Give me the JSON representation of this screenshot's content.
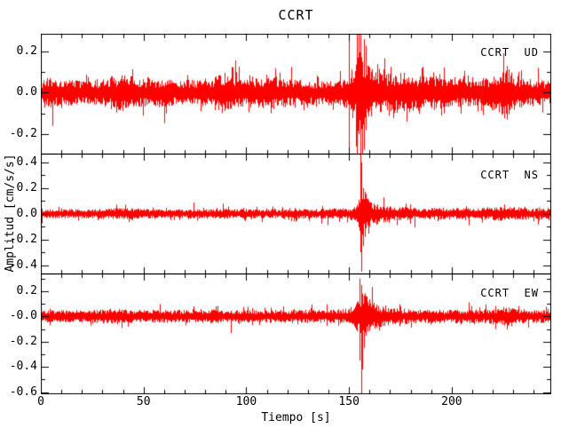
{
  "title": "CCRT",
  "axis": {
    "x_label": "Tiempo [s]",
    "y_label": "Amplitud [cm/s/s]",
    "xlim": [
      0,
      248
    ],
    "x_ticks": [
      {
        "v": 0,
        "label": "0"
      },
      {
        "v": 50,
        "label": "50"
      },
      {
        "v": 100,
        "label": "100"
      },
      {
        "v": 150,
        "label": "150"
      },
      {
        "v": 200,
        "label": "200"
      }
    ],
    "x_major_step": 50,
    "x_minor_step": 10,
    "y_minor_step": 0.1
  },
  "colors": {
    "trace": "#ff0000",
    "axis": "#000000",
    "background": "#ffffff"
  },
  "chart_data": [
    {
      "type": "line",
      "name": "CCRT  UD",
      "station": "CCRT",
      "component": "UD",
      "xlabel": "Tiempo [s]",
      "ylabel": "Amplitud [cm/s/s]",
      "xlim": [
        0,
        248
      ],
      "ylim": [
        -0.295,
        0.286
      ],
      "y_ticks": [
        {
          "v": 0.2,
          "label": "0.2"
        },
        {
          "v": 0.0,
          "label": "0.0"
        },
        {
          "v": -0.2,
          "label": "-0.2"
        }
      ],
      "noise_envelope": [
        [
          0,
          0.055
        ],
        [
          3,
          0.07
        ],
        [
          8,
          0.055
        ],
        [
          15,
          0.055
        ],
        [
          25,
          0.05
        ],
        [
          33,
          0.065
        ],
        [
          38,
          0.075
        ],
        [
          42,
          0.085
        ],
        [
          46,
          0.06
        ],
        [
          55,
          0.065
        ],
        [
          65,
          0.055
        ],
        [
          75,
          0.055
        ],
        [
          83,
          0.065
        ],
        [
          87,
          0.095
        ],
        [
          91,
          0.07
        ],
        [
          100,
          0.06
        ],
        [
          108,
          0.065
        ],
        [
          114,
          0.07
        ],
        [
          122,
          0.055
        ],
        [
          130,
          0.05
        ],
        [
          138,
          0.052
        ],
        [
          144,
          0.055
        ],
        [
          147,
          0.06
        ],
        [
          149,
          0.08
        ],
        [
          151,
          0.1
        ],
        [
          153,
          0.13
        ],
        [
          155,
          0.2
        ],
        [
          157,
          0.16
        ],
        [
          159,
          0.12
        ],
        [
          162,
          0.1
        ],
        [
          166,
          0.08
        ],
        [
          172,
          0.08
        ],
        [
          177,
          0.1
        ],
        [
          182,
          0.08
        ],
        [
          188,
          0.07
        ],
        [
          194,
          0.08
        ],
        [
          198,
          0.07
        ],
        [
          205,
          0.06
        ],
        [
          212,
          0.06
        ],
        [
          218,
          0.065
        ],
        [
          222,
          0.08
        ],
        [
          226,
          0.12
        ],
        [
          230,
          0.08
        ],
        [
          236,
          0.06
        ],
        [
          242,
          0.055
        ],
        [
          248,
          0.05
        ]
      ],
      "spikes": [
        {
          "t": 149.8,
          "lo": -0.295,
          "hi": 0.286
        },
        {
          "t": 154.0,
          "lo": -0.295,
          "hi": 0.286
        },
        {
          "t": 154.8,
          "lo": -0.2,
          "hi": 0.286
        },
        {
          "t": 155.6,
          "lo": -0.295,
          "hi": 0.286
        },
        {
          "t": 156.4,
          "lo": -0.295,
          "hi": 0.15
        },
        {
          "t": 157.2,
          "lo": -0.22,
          "hi": 0.26
        },
        {
          "t": 158.0,
          "lo": -0.18,
          "hi": 0.2
        },
        {
          "t": 196.0,
          "lo": -0.1,
          "hi": 0.12
        },
        {
          "t": 227.0,
          "lo": -0.13,
          "hi": 0.13
        }
      ],
      "seed": 7
    },
    {
      "type": "line",
      "name": "CCRT  NS",
      "station": "CCRT",
      "component": "NS",
      "xlabel": "Tiempo [s]",
      "ylabel": "Amplitud [cm/s/s]",
      "xlim": [
        0,
        248
      ],
      "ylim": [
        -0.465,
        0.468
      ],
      "y_ticks": [
        {
          "v": 0.4,
          "label": "0.4"
        },
        {
          "v": 0.2,
          "label": "0.2"
        },
        {
          "v": 0.0,
          "label": "0.0"
        },
        {
          "v": -0.2,
          "label": "-0.2"
        },
        {
          "v": -0.4,
          "label": "-0.4"
        }
      ],
      "noise_envelope": [
        [
          0,
          0.03
        ],
        [
          10,
          0.032
        ],
        [
          20,
          0.032
        ],
        [
          30,
          0.036
        ],
        [
          40,
          0.045
        ],
        [
          48,
          0.034
        ],
        [
          60,
          0.03
        ],
        [
          75,
          0.032
        ],
        [
          90,
          0.034
        ],
        [
          105,
          0.03
        ],
        [
          120,
          0.032
        ],
        [
          135,
          0.034
        ],
        [
          145,
          0.036
        ],
        [
          150,
          0.04
        ],
        [
          153,
          0.06
        ],
        [
          155,
          0.12
        ],
        [
          157,
          0.18
        ],
        [
          159,
          0.12
        ],
        [
          162,
          0.08
        ],
        [
          166,
          0.06
        ],
        [
          172,
          0.05
        ],
        [
          180,
          0.042
        ],
        [
          195,
          0.04
        ],
        [
          210,
          0.038
        ],
        [
          220,
          0.045
        ],
        [
          226,
          0.055
        ],
        [
          232,
          0.045
        ],
        [
          240,
          0.038
        ],
        [
          248,
          0.035
        ]
      ],
      "spikes": [
        {
          "t": 155.4,
          "lo": -0.3,
          "hi": 0.468
        },
        {
          "t": 156.0,
          "lo": -0.45,
          "hi": 0.4
        },
        {
          "t": 156.8,
          "lo": -0.25,
          "hi": 0.2
        },
        {
          "t": 157.6,
          "lo": -0.18,
          "hi": 0.15
        }
      ],
      "seed": 13
    },
    {
      "type": "line",
      "name": "CCRT  EW",
      "station": "CCRT",
      "component": "EW",
      "xlabel": "Tiempo [s]",
      "ylabel": "Amplitud [cm/s/s]",
      "xlim": [
        0,
        248
      ],
      "ylim": [
        -0.61,
        0.34
      ],
      "y_ticks": [
        {
          "v": 0.2,
          "label": "0.2"
        },
        {
          "v": 0.0,
          "label": "-0.0"
        },
        {
          "v": -0.2,
          "label": "-0.2"
        },
        {
          "v": -0.4,
          "label": "-0.4"
        },
        {
          "v": -0.6,
          "label": "-0.6"
        }
      ],
      "noise_envelope": [
        [
          0,
          0.042
        ],
        [
          10,
          0.044
        ],
        [
          20,
          0.042
        ],
        [
          30,
          0.05
        ],
        [
          36,
          0.058
        ],
        [
          42,
          0.048
        ],
        [
          55,
          0.044
        ],
        [
          70,
          0.045
        ],
        [
          85,
          0.048
        ],
        [
          100,
          0.044
        ],
        [
          115,
          0.046
        ],
        [
          130,
          0.048
        ],
        [
          140,
          0.046
        ],
        [
          148,
          0.055
        ],
        [
          151,
          0.07
        ],
        [
          153,
          0.08
        ],
        [
          155,
          0.15
        ],
        [
          157,
          0.2
        ],
        [
          159,
          0.13
        ],
        [
          162,
          0.09
        ],
        [
          167,
          0.07
        ],
        [
          173,
          0.055
        ],
        [
          182,
          0.05
        ],
        [
          195,
          0.046
        ],
        [
          205,
          0.048
        ],
        [
          215,
          0.05
        ],
        [
          222,
          0.06
        ],
        [
          227,
          0.07
        ],
        [
          232,
          0.055
        ],
        [
          240,
          0.046
        ],
        [
          248,
          0.044
        ]
      ],
      "spikes": [
        {
          "t": 155.2,
          "lo": -0.35,
          "hi": 0.3
        },
        {
          "t": 155.8,
          "lo": -0.61,
          "hi": 0.25
        },
        {
          "t": 156.6,
          "lo": -0.42,
          "hi": 0.18
        },
        {
          "t": 157.4,
          "lo": -0.25,
          "hi": 0.12
        }
      ],
      "seed": 21
    }
  ]
}
